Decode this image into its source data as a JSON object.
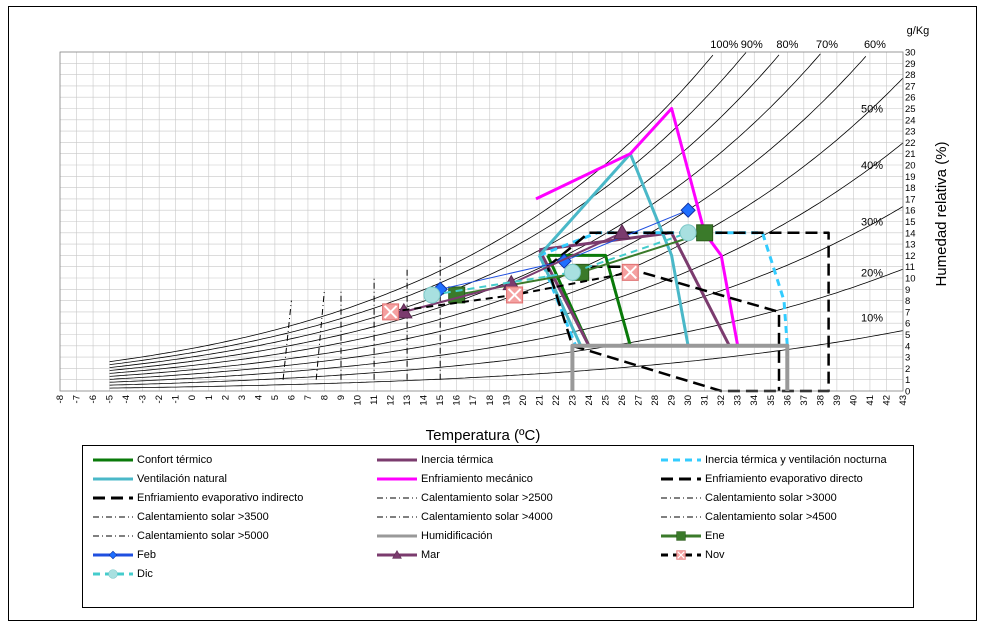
{
  "chart_data": {
    "type": "line",
    "title": "",
    "xlabel": "Temperatura (ºC)",
    "ylabel_right": "Humedad relativa (%)",
    "y_unit_label": "g/Kg",
    "xlim": [
      -8,
      43
    ],
    "ylim": [
      0,
      30
    ],
    "x_ticks": [
      -8,
      -7,
      -6,
      -5,
      -4,
      -3,
      -2,
      -1,
      0,
      1,
      2,
      3,
      4,
      5,
      6,
      7,
      8,
      9,
      10,
      11,
      12,
      13,
      14,
      15,
      16,
      17,
      18,
      19,
      20,
      21,
      22,
      23,
      24,
      25,
      26,
      27,
      28,
      29,
      30,
      31,
      32,
      33,
      34,
      35,
      36,
      37,
      38,
      39,
      40,
      41,
      42,
      43
    ],
    "y_ticks": [
      0,
      1,
      2,
      3,
      4,
      5,
      6,
      7,
      8,
      9,
      10,
      11,
      12,
      13,
      14,
      15,
      16,
      17,
      18,
      19,
      20,
      21,
      22,
      23,
      24,
      25,
      26,
      27,
      28,
      29,
      30
    ],
    "grid": true,
    "rh_curves": [
      10,
      20,
      30,
      40,
      50,
      60,
      70,
      80,
      90,
      100
    ],
    "rh_curve_labels_top": [
      {
        "text": "100%",
        "rh": 100
      },
      {
        "text": "90%",
        "rh": 90
      },
      {
        "text": "80%",
        "rh": 80
      },
      {
        "text": "70%",
        "rh": 70
      },
      {
        "text": "60%",
        "rh": 60
      }
    ],
    "rh_curve_labels_right": [
      {
        "text": "50%",
        "y": 25
      },
      {
        "text": "40%",
        "y": 20
      },
      {
        "text": "30%",
        "y": 15
      },
      {
        "text": "20%",
        "y": 10.5
      },
      {
        "text": "10%",
        "y": 6.5
      }
    ],
    "series": [
      {
        "name": "Confort térmico",
        "color": "#0a7a0a",
        "style": "solid",
        "width": 3,
        "x": [
          21.5,
          25,
          26.5,
          24,
          21.5
        ],
        "y": [
          12,
          12,
          4,
          4,
          12
        ]
      },
      {
        "name": "Inercia térmica",
        "color": "#7b3b6e",
        "style": "solid",
        "width": 3,
        "x": [
          21,
          29,
          32.5,
          24,
          21
        ],
        "y": [
          12.5,
          14,
          4,
          4,
          12.5
        ]
      },
      {
        "name": "Inercia térmica y ventilación nocturna",
        "color": "#33ccff",
        "style": "dash",
        "width": 3,
        "x": [
          21,
          24.5,
          34.5,
          35.8,
          36,
          23.2,
          21
        ],
        "y": [
          12,
          14,
          14,
          8,
          4,
          4,
          12
        ]
      },
      {
        "name": "Ventilación natural",
        "color": "#4ab8c8",
        "style": "solid",
        "width": 3,
        "x": [
          21,
          26.5,
          29,
          30,
          23.5,
          21
        ],
        "y": [
          12,
          21,
          12,
          4,
          4,
          12
        ]
      },
      {
        "name": "Enfriamiento mecánico",
        "color": "#ff00ff",
        "style": "solid",
        "width": 3,
        "x": [
          20.8,
          26.5,
          29,
          31,
          32,
          33,
          24
        ],
        "y": [
          17,
          21,
          25,
          14,
          12,
          4,
          4
        ]
      },
      {
        "name": "Enfriamiento evaporativo directo",
        "color": "#000000",
        "style": "longdash",
        "width": 2.5,
        "x": [
          21.5,
          24,
          38.5,
          38.5,
          32,
          23,
          21.5
        ],
        "y": [
          11,
          14,
          14,
          0,
          0,
          4,
          11
        ]
      },
      {
        "name": "Enfriamiento evaporativo indirecto",
        "color": "#000000",
        "style": "longdash",
        "width": 2.5,
        "x": [
          23,
          26,
          35.5,
          35.5,
          35.5
        ],
        "y": [
          11,
          11,
          7,
          4,
          0
        ]
      },
      {
        "name": "Humidificación",
        "color": "#999999",
        "style": "solid",
        "width": 4,
        "x": [
          23,
          23,
          36,
          36
        ],
        "y": [
          0,
          4,
          4,
          0
        ]
      },
      {
        "name": "Calentamiento solar >2500",
        "color": "#000000",
        "style": "dashdot",
        "width": 1,
        "x": [
          5.5,
          6
        ],
        "y": [
          1,
          8
        ]
      },
      {
        "name": "Calentamiento solar >3000",
        "color": "#000000",
        "style": "dashdot",
        "width": 1,
        "x": [
          7.5,
          8
        ],
        "y": [
          1,
          9
        ]
      },
      {
        "name": "Calentamiento solar >3500",
        "color": "#000000",
        "style": "dashdot",
        "width": 1,
        "x": [
          9,
          9
        ],
        "y": [
          1,
          9
        ]
      },
      {
        "name": "Calentamiento solar >4000",
        "color": "#000000",
        "style": "dashdot",
        "width": 1,
        "x": [
          11,
          11
        ],
        "y": [
          1,
          10
        ]
      },
      {
        "name": "Calentamiento solar >4500",
        "color": "#000000",
        "style": "dashdot",
        "width": 1,
        "x": [
          13,
          13
        ],
        "y": [
          1,
          11
        ]
      },
      {
        "name": "Calentamiento solar >5000",
        "color": "#000000",
        "style": "dashdot",
        "width": 1,
        "x": [
          15,
          15
        ],
        "y": [
          1,
          12
        ]
      },
      {
        "name": "Ene",
        "color": "#3a7a2a",
        "style": "solid",
        "width": 2,
        "marker": "square",
        "x": [
          16,
          23.5,
          31
        ],
        "y": [
          8.5,
          10.5,
          14
        ]
      },
      {
        "name": "Feb",
        "color": "#1f4fe0",
        "style": "solid",
        "width": 1,
        "marker": "diamond",
        "x": [
          15,
          22.5,
          30
        ],
        "y": [
          9,
          11.5,
          16
        ]
      },
      {
        "name": "Mar",
        "color": "#7b3b6e",
        "style": "solid",
        "width": 2,
        "marker": "triangle",
        "x": [
          12.8,
          19.3,
          26
        ],
        "y": [
          7,
          9.5,
          14
        ]
      },
      {
        "name": "Nov",
        "color": "#000000",
        "style": "dash",
        "width": 2,
        "marker": "xbox",
        "x": [
          12,
          19.5,
          26.5
        ],
        "y": [
          7,
          8.5,
          10.5
        ]
      },
      {
        "name": "Dic",
        "color": "#44cccc",
        "style": "dash",
        "width": 2,
        "marker": "circle",
        "x": [
          14.5,
          23,
          30
        ],
        "y": [
          8.5,
          10.5,
          14
        ]
      }
    ]
  },
  "legend": [
    {
      "label": "Confort térmico",
      "color": "#0a7a0a",
      "style": "solid",
      "marker": ""
    },
    {
      "label": "Inercia térmica",
      "color": "#7b3b6e",
      "style": "solid",
      "marker": ""
    },
    {
      "label": "Inercia térmica y ventilación nocturna",
      "color": "#33ccff",
      "style": "dash",
      "marker": ""
    },
    {
      "label": "Ventilación natural",
      "color": "#4ab8c8",
      "style": "solid",
      "marker": ""
    },
    {
      "label": "Enfriamiento mecánico",
      "color": "#ff00ff",
      "style": "solid",
      "marker": ""
    },
    {
      "label": "Enfriamiento evaporativo directo",
      "color": "#000000",
      "style": "longdash",
      "marker": ""
    },
    {
      "label": "Enfriamiento evaporativo indirecto",
      "color": "#000000",
      "style": "longdash",
      "marker": ""
    },
    {
      "label": "Calentamiento solar >2500",
      "color": "#000000",
      "style": "dashdot",
      "marker": ""
    },
    {
      "label": "Calentamiento solar >3000",
      "color": "#000000",
      "style": "dashdot",
      "marker": ""
    },
    {
      "label": "Calentamiento solar >3500",
      "color": "#000000",
      "style": "dashdot",
      "marker": ""
    },
    {
      "label": "Calentamiento solar >4000",
      "color": "#000000",
      "style": "dashdot",
      "marker": ""
    },
    {
      "label": "Calentamiento solar >4500",
      "color": "#000000",
      "style": "dashdot",
      "marker": ""
    },
    {
      "label": "Calentamiento solar >5000",
      "color": "#000000",
      "style": "dashdot",
      "marker": ""
    },
    {
      "label": "Humidificación",
      "color": "#999999",
      "style": "solid",
      "marker": ""
    },
    {
      "label": "Ene",
      "color": "#3a7a2a",
      "style": "solid",
      "marker": "square"
    },
    {
      "label": "Feb",
      "color": "#1f4fe0",
      "style": "solid",
      "marker": "diamond"
    },
    {
      "label": "Mar",
      "color": "#7b3b6e",
      "style": "solid",
      "marker": "triangle"
    },
    {
      "label": "Nov",
      "color": "#000000",
      "style": "dash",
      "marker": "xbox"
    },
    {
      "label": "Dic",
      "color": "#44cccc",
      "style": "dash",
      "marker": "circle"
    }
  ]
}
